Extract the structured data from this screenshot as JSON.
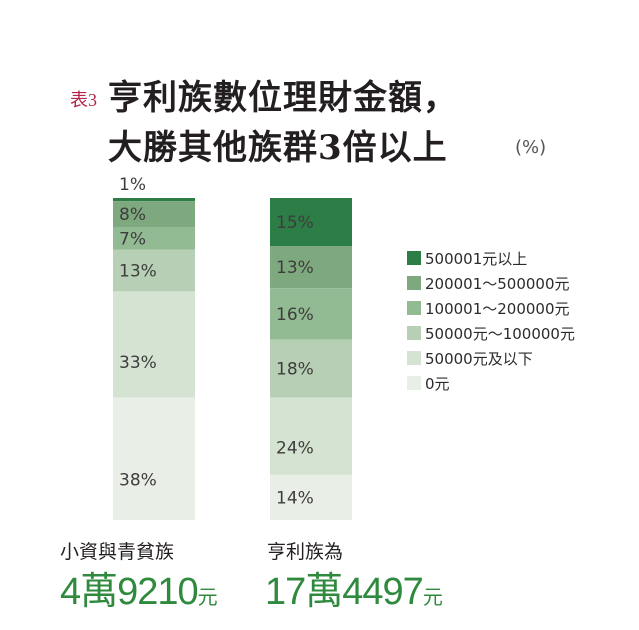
{
  "title": {
    "table_number": "表3",
    "line1": "亨利族數位理財金額，",
    "line2": "大勝其他族群3倍以上",
    "unit": "(%)"
  },
  "colors": {
    "level_5": "#2d7d46",
    "level_4": "#7ea97e",
    "level_3": "#93bb93",
    "level_2": "#b7d0b5",
    "level_1": "#d5e3d2",
    "level_0": "#e9efe6"
  },
  "chart_data": {
    "type": "bar",
    "stacked": true,
    "unit": "%",
    "categories": [
      "小資與青貧族",
      "亨利族為"
    ],
    "series": [
      {
        "name": "500001元以上",
        "values": [
          1,
          15
        ]
      },
      {
        "name": "200001～500000元",
        "values": [
          8,
          13
        ]
      },
      {
        "name": "100001～200000元",
        "values": [
          7,
          16
        ]
      },
      {
        "name": "50000元～100000元",
        "values": [
          13,
          18
        ]
      },
      {
        "name": "50000元及以下",
        "values": [
          33,
          24
        ]
      },
      {
        "name": "0元",
        "values": [
          38,
          14
        ]
      }
    ],
    "legend_position": "right"
  },
  "groups": [
    {
      "name": "小資與青貧族",
      "amount": "4萬9210",
      "amount_unit": "元"
    },
    {
      "name": "亨利族為",
      "amount": "17萬4497",
      "amount_unit": "元"
    }
  ]
}
